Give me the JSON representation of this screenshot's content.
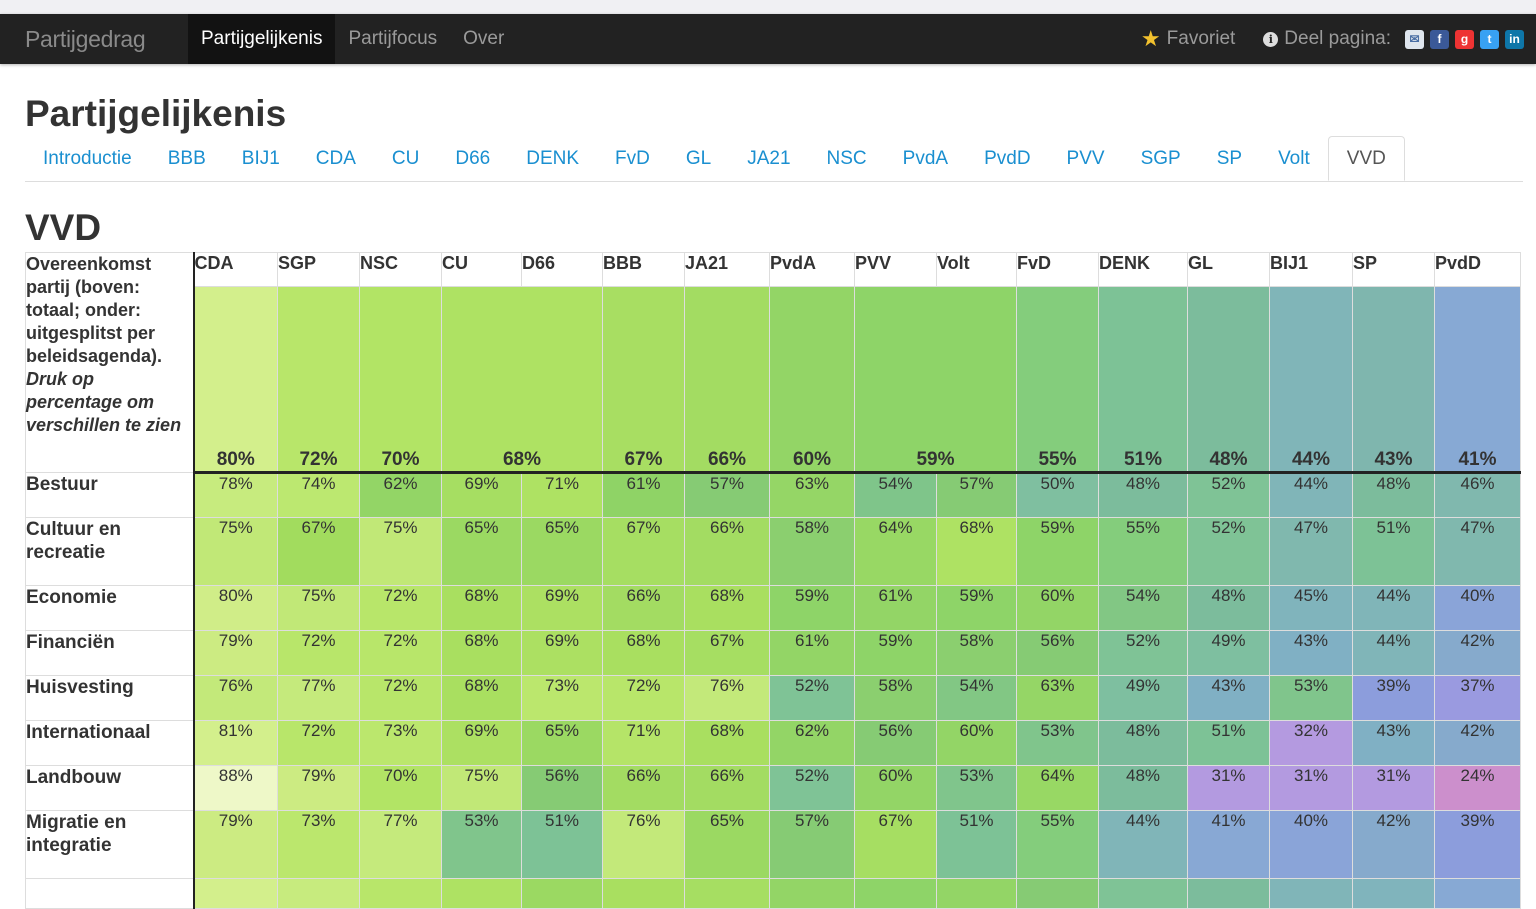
{
  "nav": {
    "brand": "Partijgedrag",
    "items": [
      "Partijgelijkenis",
      "Partijfocus",
      "Over"
    ],
    "favorite": "Favoriet",
    "share": "Deel pagina:"
  },
  "page_title": "Partijgelijkenis",
  "tabs": [
    "Introductie",
    "BBB",
    "BIJ1",
    "CDA",
    "CU",
    "D66",
    "DENK",
    "FvD",
    "GL",
    "JA21",
    "NSC",
    "PvdA",
    "PvdD",
    "PVV",
    "SGP",
    "SP",
    "Volt",
    "VVD"
  ],
  "active_tab": "VVD",
  "section_title": "VVD",
  "table": {
    "corner_text": "Overeenkomst partij (boven: totaal; onder: uitgesplitst per beleidsagenda).",
    "corner_hint": "Druk op percentage om verschillen te zien",
    "columns": [
      "CDA",
      "SGP",
      "NSC",
      "CU",
      "D66",
      "BBB",
      "JA21",
      "PvdA",
      "PVV",
      "Volt",
      "FvD",
      "DENK",
      "GL",
      "BIJ1",
      "SP",
      "PvdD"
    ],
    "totals": [
      {
        "label": "80%",
        "span": 1,
        "color": "#d3ef8c"
      },
      {
        "label": "72%",
        "span": 1,
        "color": "#b8e66a"
      },
      {
        "label": "70%",
        "span": 1,
        "color": "#b2e465"
      },
      {
        "label": "68%",
        "span": 2,
        "color": "#aee263"
      },
      {
        "label": "67%",
        "span": 1,
        "color": "#a8de62"
      },
      {
        "label": "66%",
        "span": 1,
        "color": "#a3dc62"
      },
      {
        "label": "60%",
        "span": 1,
        "color": "#93d566"
      },
      {
        "label": "59%",
        "span": 2,
        "color": "#8ed468"
      },
      {
        "label": "55%",
        "span": 1,
        "color": "#84cd7c"
      },
      {
        "label": "51%",
        "span": 1,
        "color": "#7dc296"
      },
      {
        "label": "48%",
        "span": 1,
        "color": "#7cbc9c"
      },
      {
        "label": "44%",
        "span": 1,
        "color": "#80b5b8"
      },
      {
        "label": "43%",
        "span": 1,
        "color": "#7fb6ae"
      },
      {
        "label": "41%",
        "span": 1,
        "color": "#87a9d4"
      }
    ],
    "rows": [
      {
        "label": "Bestuur",
        "values": [
          "78%",
          "74%",
          "62%",
          "69%",
          "71%",
          "61%",
          "57%",
          "63%",
          "54%",
          "57%",
          "50%",
          "48%",
          "52%",
          "44%",
          "48%",
          "46%"
        ],
        "colors": [
          "#c7eb7e",
          "#bce870",
          "#93d566",
          "#a6de62",
          "#aee263",
          "#8fd366",
          "#86cb74",
          "#95d666",
          "#7fc58a",
          "#86cb74",
          "#7fbfa0",
          "#7cbc9c",
          "#7fc396",
          "#80b5b8",
          "#7cbc9c",
          "#80b8ae"
        ]
      },
      {
        "label": "Cultuur en recreatie",
        "values": [
          "75%",
          "67%",
          "75%",
          "65%",
          "65%",
          "67%",
          "66%",
          "58%",
          "64%",
          "68%",
          "59%",
          "55%",
          "52%",
          "47%",
          "51%",
          "47%"
        ],
        "colors": [
          "#c1e877",
          "#a2dc5e",
          "#c1e877",
          "#9bd962",
          "#9bd962",
          "#a6de62",
          "#a3dc62",
          "#8bcf6f",
          "#98d864",
          "#aee263",
          "#8ed468",
          "#84cd7c",
          "#7fc396",
          "#80b8ae",
          "#7dc296",
          "#80b8ae"
        ]
      },
      {
        "label": "Economie",
        "values": [
          "80%",
          "75%",
          "72%",
          "68%",
          "69%",
          "66%",
          "68%",
          "59%",
          "61%",
          "59%",
          "60%",
          "54%",
          "48%",
          "45%",
          "44%",
          "40%"
        ],
        "colors": [
          "#d0ed88",
          "#c1e877",
          "#b8e66a",
          "#a9df60",
          "#ace062",
          "#a3dc62",
          "#a9df60",
          "#8ed468",
          "#93d566",
          "#8ed468",
          "#93d566",
          "#82c784",
          "#7cbc9c",
          "#80b4bc",
          "#80b5b8",
          "#8aa4d8"
        ]
      },
      {
        "label": "Financiën",
        "values": [
          "79%",
          "72%",
          "72%",
          "68%",
          "69%",
          "68%",
          "67%",
          "61%",
          "59%",
          "58%",
          "56%",
          "52%",
          "49%",
          "43%",
          "44%",
          "42%"
        ],
        "colors": [
          "#cceb82",
          "#b8e66a",
          "#b8e66a",
          "#a9df60",
          "#ace062",
          "#a9df60",
          "#a6de62",
          "#93d566",
          "#8ed468",
          "#8bcf6f",
          "#86cb74",
          "#7fc396",
          "#7ebfa0",
          "#80b0c4",
          "#80b5b8",
          "#86aacc"
        ]
      },
      {
        "label": "Huisvesting",
        "values": [
          "76%",
          "77%",
          "72%",
          "68%",
          "73%",
          "72%",
          "76%",
          "52%",
          "58%",
          "54%",
          "63%",
          "49%",
          "43%",
          "53%",
          "39%",
          "37%"
        ],
        "colors": [
          "#c3e97a",
          "#c5ea7c",
          "#b8e66a",
          "#a9df60",
          "#bbe76d",
          "#b8e66a",
          "#c3e97a",
          "#7fc396",
          "#8bcf6f",
          "#82c784",
          "#95d666",
          "#7ebfa0",
          "#80b0c4",
          "#80c58c",
          "#8c9ddc",
          "#9a9ae0"
        ]
      },
      {
        "label": "Internationaal",
        "values": [
          "81%",
          "72%",
          "73%",
          "69%",
          "65%",
          "71%",
          "68%",
          "62%",
          "56%",
          "60%",
          "53%",
          "48%",
          "51%",
          "32%",
          "43%",
          "42%"
        ],
        "colors": [
          "#d3ef8c",
          "#b8e66a",
          "#bbe76d",
          "#ace062",
          "#9bd962",
          "#b5e468",
          "#a9df60",
          "#93d566",
          "#86cb74",
          "#93d566",
          "#80c58c",
          "#7cbc9c",
          "#7dc296",
          "#b49ae0",
          "#80b0c4",
          "#86aacc"
        ]
      },
      {
        "label": "Landbouw",
        "values": [
          "88%",
          "79%",
          "70%",
          "75%",
          "56%",
          "66%",
          "66%",
          "52%",
          "60%",
          "53%",
          "64%",
          "48%",
          "31%",
          "31%",
          "31%",
          "24%"
        ],
        "colors": [
          "#eef8c8",
          "#cceb82",
          "#b2e465",
          "#c1e877",
          "#86cb74",
          "#a3dc62",
          "#a3dc62",
          "#7fc396",
          "#93d566",
          "#80c58c",
          "#98d864",
          "#7cbc9c",
          "#b39ae0",
          "#b39ae0",
          "#b39ae0",
          "#cc8fcc"
        ]
      },
      {
        "label": "Migratie en integratie",
        "values": [
          "79%",
          "73%",
          "77%",
          "53%",
          "51%",
          "76%",
          "65%",
          "57%",
          "67%",
          "51%",
          "55%",
          "44%",
          "41%",
          "40%",
          "42%",
          "39%"
        ],
        "colors": [
          "#cceb82",
          "#bbe76d",
          "#c5ea7c",
          "#80c58c",
          "#7dc296",
          "#c3e97a",
          "#9bd962",
          "#86cb74",
          "#a6de62",
          "#7dc296",
          "#84cd7c",
          "#80b5b8",
          "#88a8d4",
          "#8aa4d8",
          "#86aacc",
          "#8c9ddc"
        ]
      }
    ],
    "partial_row_colors": [
      "#d3ef8c",
      "#c7eb7e",
      "#b8e66a",
      "#aee263",
      "#9bd962",
      "#a9df60",
      "#a6de62",
      "#93d566",
      "#8ed468",
      "#93d566",
      "#86cb74",
      "#7fc396",
      "#7cbc9c",
      "#80b5b8",
      "#80b4bc",
      "#87a9d4"
    ]
  },
  "colors": {
    "navbar": "#222222",
    "link": "#1a8fd0",
    "star": "#f2c12e"
  }
}
